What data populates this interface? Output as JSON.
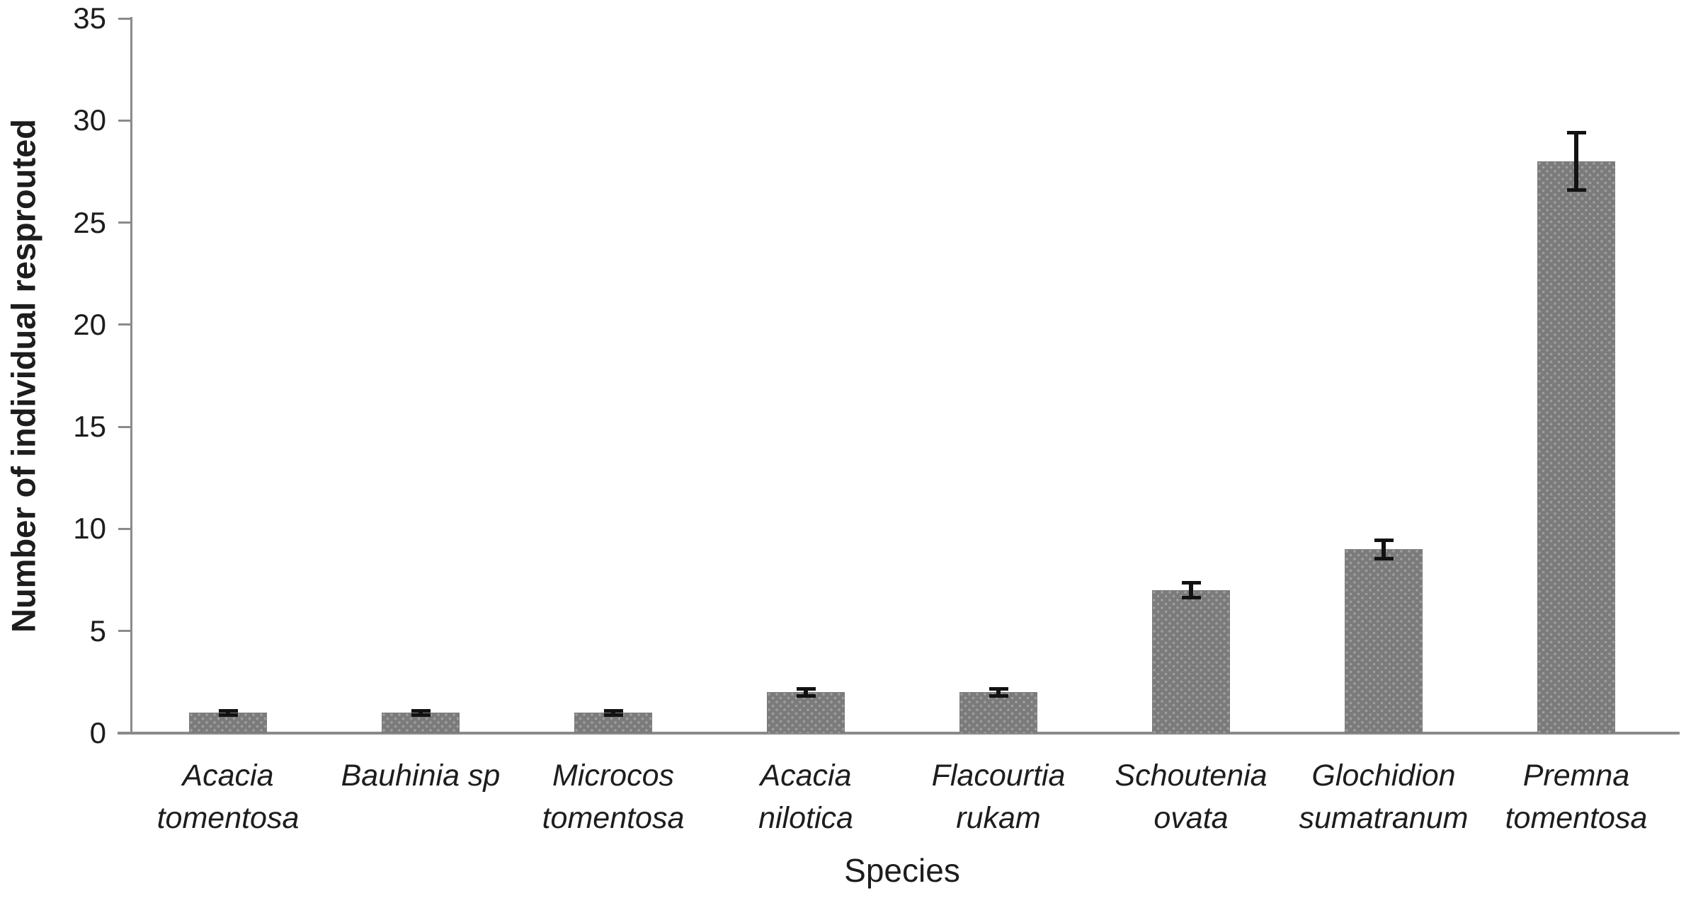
{
  "chart_data": {
    "type": "bar",
    "title": "",
    "xlabel": "Species",
    "ylabel": "Number of individual resprouted",
    "ylim": [
      0,
      35
    ],
    "ytick_step": 5,
    "yticks": [
      0,
      5,
      10,
      15,
      20,
      25,
      30,
      35
    ],
    "grid": false,
    "legend": "none",
    "categories": [
      "Acacia tomentosa",
      "Bauhinia sp",
      "Microcos tomentosa",
      "Acacia nilotica",
      "Flacourtia rukam",
      "Schoutenia ovata",
      "Glochidion sumatranum",
      "Premna tomentosa"
    ],
    "category_label_lines": [
      [
        "Acacia",
        "tomentosa"
      ],
      [
        "Bauhinia sp"
      ],
      [
        "Microcos",
        "tomentosa"
      ],
      [
        "Acacia",
        "nilotica"
      ],
      [
        "Flacourtia",
        "rukam"
      ],
      [
        "Schoutenia",
        "ovata"
      ],
      [
        "Glochidion",
        "sumatranum"
      ],
      [
        "Premna",
        "tomentosa"
      ]
    ],
    "series": [
      {
        "name": "Number of individual resprouted",
        "values": [
          1,
          1,
          1,
          2,
          2,
          7,
          9,
          28
        ],
        "errors_plus_minus": [
          0.1,
          0.1,
          0.1,
          0.18,
          0.18,
          0.38,
          0.45,
          1.4
        ]
      }
    ],
    "bar_style": "gray with light dotted pattern fill, black error bars",
    "colors": {
      "bar": "#7b7b7b",
      "bar_dot": "#9e9e9e",
      "error": "#121212",
      "axis": "#8a8a8a",
      "text": "#1d1d1d",
      "background": "#ffffff"
    }
  }
}
